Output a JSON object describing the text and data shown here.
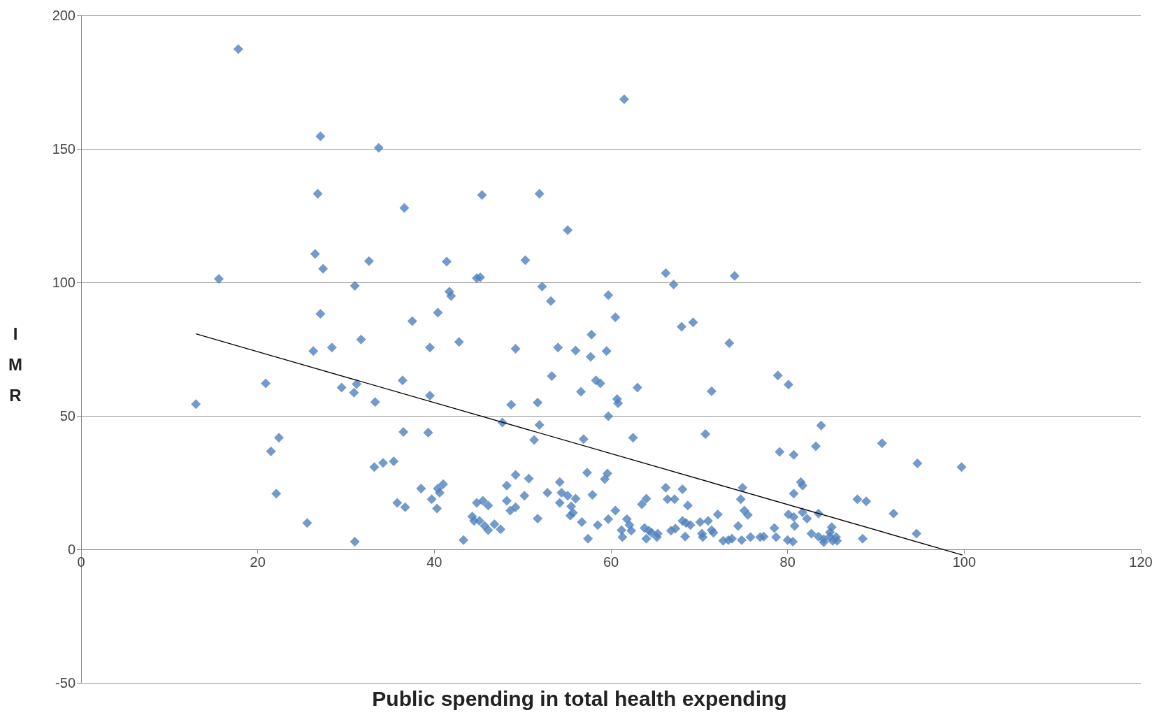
{
  "chart_data": {
    "type": "scatter",
    "xlabel": "Public spending in total health expending",
    "ylabel": "IMR",
    "xlim": [
      0,
      120
    ],
    "xticks": [
      0,
      20,
      40,
      60,
      80,
      100,
      120
    ],
    "ylim": [
      -50,
      200
    ],
    "yticks": [
      -50,
      0,
      50,
      100,
      150,
      200
    ],
    "grid": "y",
    "marker": "diamond",
    "series": [
      {
        "color": "#4f81bd",
        "x": [
          17.8,
          61.5,
          27.1,
          33.7,
          26.8,
          45.4,
          51.9,
          36.6,
          55.1,
          26.5,
          32.6,
          41.4,
          50.3,
          27.4,
          15.6,
          44.8,
          45.2,
          66.2,
          74.0,
          31.0,
          52.2,
          67.1,
          41.7,
          41.9,
          59.7,
          53.2,
          40.4,
          27.1,
          60.5,
          37.5,
          69.3,
          68.0,
          42.8,
          31.7,
          73.4,
          28.4,
          26.3,
          39.5,
          49.2,
          54.0,
          56.0,
          59.5,
          57.8,
          57.7,
          53.3,
          78.9,
          58.3,
          58.8,
          20.9,
          31.2,
          29.5,
          36.4,
          63.0,
          80.1,
          71.4,
          56.6,
          30.9,
          39.5,
          60.7,
          60.8,
          13.0,
          33.3,
          51.7,
          48.7,
          59.7,
          47.7,
          51.9,
          83.8,
          36.5,
          39.3,
          70.7,
          22.4,
          62.5,
          56.9,
          51.3,
          90.7,
          83.2,
          21.5,
          79.1,
          80.7,
          35.4,
          34.2,
          33.2,
          94.7,
          99.7,
          57.3,
          59.6,
          49.2,
          50.7,
          59.3,
          54.2,
          81.5,
          81.7,
          41.0,
          38.5,
          40.4,
          66.2,
          68.1,
          74.9,
          48.2,
          40.6,
          52.8,
          54.4,
          55.1,
          80.7,
          22.1,
          57.9,
          50.2,
          56.0,
          66.4,
          67.2,
          64.0,
          74.7,
          87.9,
          88.9,
          39.7,
          48.2,
          45.5,
          63.5,
          44.8,
          35.8,
          46.1,
          68.7,
          36.7,
          40.3,
          54.2,
          55.5,
          49.2,
          55.7,
          48.6,
          75.1,
          75.5,
          92.0,
          83.5,
          80.1,
          80.7,
          44.3,
          60.5,
          55.4,
          61.8,
          51.7,
          82.2,
          72.1,
          81.7,
          44.5,
          56.7,
          59.7,
          71.0,
          70.1,
          68.5,
          68.1,
          25.6,
          58.5,
          46.8,
          45.7,
          45.1,
          62.1,
          69.0,
          74.4,
          63.8,
          85.0,
          80.8,
          78.5,
          47.5,
          46.1,
          61.2,
          66.8,
          67.3,
          71.4,
          64.3,
          62.3,
          64.6,
          65.3,
          84.8,
          82.7,
          94.6,
          70.3,
          71.6,
          83.5,
          85.5,
          70.4,
          68.4,
          61.3,
          65.2,
          76.9,
          78.7,
          75.8,
          77.3,
          84.8,
          57.4,
          64.0,
          88.5,
          73.7,
          73.3,
          74.8,
          84.1,
          80.0,
          85.1,
          72.7,
          80.6,
          84.1,
          85.6,
          43.3,
          31.0
        ],
        "values": [
          187.4,
          168.6,
          154.7,
          150.4,
          133.2,
          132.7,
          133.2,
          127.9,
          119.6,
          110.7,
          108.0,
          107.8,
          108.3,
          105.1,
          101.3,
          101.6,
          101.9,
          103.5,
          102.4,
          98.7,
          98.4,
          99.2,
          96.5,
          94.9,
          95.2,
          93.0,
          88.7,
          88.2,
          86.9,
          85.5,
          85.0,
          83.4,
          77.7,
          78.6,
          77.2,
          75.6,
          74.3,
          75.6,
          75.1,
          75.6,
          74.5,
          74.3,
          80.4,
          72.1,
          64.9,
          65.1,
          63.3,
          62.2,
          62.2,
          61.9,
          60.6,
          63.3,
          60.6,
          61.7,
          59.2,
          59.0,
          58.7,
          57.6,
          56.3,
          54.7,
          54.4,
          55.2,
          55.0,
          54.2,
          49.9,
          47.5,
          46.6,
          46.4,
          44.0,
          43.7,
          43.2,
          41.8,
          41.8,
          41.3,
          41.0,
          39.7,
          38.6,
          36.7,
          36.5,
          35.4,
          33.0,
          32.4,
          30.8,
          32.2,
          30.8,
          28.7,
          28.4,
          27.9,
          26.5,
          26.3,
          25.2,
          25.2,
          23.9,
          24.4,
          22.8,
          22.8,
          23.1,
          22.5,
          23.1,
          23.9,
          21.2,
          21.2,
          21.2,
          20.1,
          20.9,
          20.9,
          20.4,
          20.1,
          19.0,
          18.8,
          18.8,
          19.0,
          18.8,
          18.8,
          18.0,
          18.8,
          18.2,
          18.2,
          16.9,
          17.4,
          17.4,
          16.4,
          16.4,
          15.8,
          15.3,
          17.4,
          16.1,
          15.8,
          13.7,
          14.5,
          14.5,
          12.9,
          13.4,
          13.4,
          13.1,
          12.1,
          12.3,
          14.5,
          12.6,
          11.3,
          11.5,
          11.5,
          13.1,
          13.9,
          10.7,
          10.2,
          11.3,
          10.7,
          10.2,
          9.9,
          10.7,
          9.9,
          9.1,
          9.4,
          8.8,
          10.7,
          9.1,
          9.1,
          8.8,
          8.0,
          8.3,
          8.8,
          8.0,
          7.5,
          7.2,
          7.2,
          7.0,
          7.8,
          7.2,
          7.0,
          7.0,
          6.2,
          5.9,
          6.4,
          5.9,
          5.9,
          5.9,
          6.2,
          4.8,
          4.6,
          4.6,
          4.8,
          4.6,
          4.6,
          4.6,
          4.6,
          4.6,
          4.8,
          4.8,
          4.0,
          4.0,
          4.0,
          4.0,
          3.5,
          3.5,
          3.8,
          3.5,
          3.2,
          3.2,
          2.9,
          2.7,
          3.2,
          3.5,
          2.9
        ]
      },
      {
        "type": "line",
        "color": "#000000",
        "marker": "none",
        "x": [
          13.0,
          99.8
        ],
        "values": [
          80.7,
          -2.1
        ]
      }
    ]
  }
}
